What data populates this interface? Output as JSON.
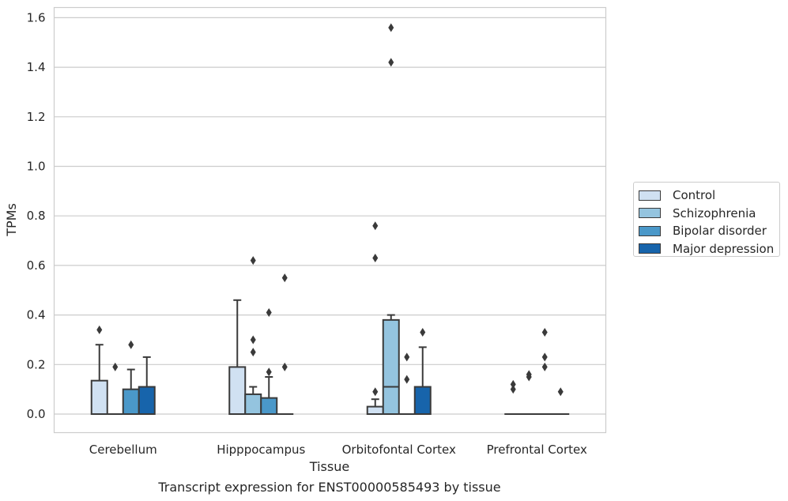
{
  "chart_data": {
    "type": "box",
    "title": "Transcript expression for ENST00000585493 by tissue",
    "xlabel": "Tissue",
    "ylabel": "TPMs",
    "ylim": [
      -0.08,
      1.64
    ],
    "yticks": [
      "0.0",
      "0.2",
      "0.4",
      "0.6",
      "0.8",
      "1.0",
      "1.2",
      "1.4",
      "1.6"
    ],
    "grid": "horizontal",
    "legend_position": "right",
    "categories": [
      "Cerebellum",
      "Hipppocampus",
      "Orbitofontal Cortex",
      "Prefrontal Cortex"
    ],
    "series": [
      {
        "name": "Control",
        "color": "#d0e1f2",
        "boxes": [
          {
            "q1": 0.0,
            "median": 0.0,
            "q3": 0.135,
            "whisker_low": 0.0,
            "whisker_high": 0.28,
            "outliers": [
              0.34
            ]
          },
          {
            "q1": 0.0,
            "median": 0.0,
            "q3": 0.19,
            "whisker_low": 0.0,
            "whisker_high": 0.46,
            "outliers": []
          },
          {
            "q1": 0.0,
            "median": 0.0,
            "q3": 0.03,
            "whisker_low": 0.0,
            "whisker_high": 0.06,
            "outliers": [
              0.09,
              0.63,
              0.76
            ]
          },
          {
            "q1": 0.0,
            "median": 0.0,
            "q3": 0.0,
            "whisker_low": 0.0,
            "whisker_high": 0.0,
            "outliers": [
              0.1,
              0.12
            ]
          }
        ]
      },
      {
        "name": "Schizophrenia",
        "color": "#94c4df",
        "boxes": [
          {
            "q1": 0.0,
            "median": 0.0,
            "q3": 0.0,
            "whisker_low": 0.0,
            "whisker_high": 0.0,
            "outliers": [
              0.19
            ]
          },
          {
            "q1": 0.0,
            "median": 0.0,
            "q3": 0.08,
            "whisker_low": 0.0,
            "whisker_high": 0.11,
            "outliers": [
              0.25,
              0.3,
              0.62
            ]
          },
          {
            "q1": 0.0,
            "median": 0.11,
            "q3": 0.38,
            "whisker_low": 0.0,
            "whisker_high": 0.4,
            "outliers": [
              1.42,
              1.56
            ]
          },
          {
            "q1": 0.0,
            "median": 0.0,
            "q3": 0.0,
            "whisker_low": 0.0,
            "whisker_high": 0.0,
            "outliers": [
              0.15,
              0.16
            ]
          }
        ]
      },
      {
        "name": "Bipolar disorder",
        "color": "#4a98c9",
        "boxes": [
          {
            "q1": 0.0,
            "median": 0.0,
            "q3": 0.1,
            "whisker_low": 0.0,
            "whisker_high": 0.18,
            "outliers": [
              0.28
            ]
          },
          {
            "q1": 0.0,
            "median": 0.0,
            "q3": 0.065,
            "whisker_low": 0.0,
            "whisker_high": 0.15,
            "outliers": [
              0.17,
              0.41
            ]
          },
          {
            "q1": 0.0,
            "median": 0.0,
            "q3": 0.0,
            "whisker_low": 0.0,
            "whisker_high": 0.0,
            "outliers": [
              0.14,
              0.23
            ]
          },
          {
            "q1": 0.0,
            "median": 0.0,
            "q3": 0.0,
            "whisker_low": 0.0,
            "whisker_high": 0.0,
            "outliers": [
              0.19,
              0.23,
              0.33
            ]
          }
        ]
      },
      {
        "name": "Major depression",
        "color": "#1764ab",
        "boxes": [
          {
            "q1": 0.0,
            "median": 0.0,
            "q3": 0.11,
            "whisker_low": 0.0,
            "whisker_high": 0.23,
            "outliers": []
          },
          {
            "q1": 0.0,
            "median": 0.0,
            "q3": 0.0,
            "whisker_low": 0.0,
            "whisker_high": 0.0,
            "outliers": [
              0.19,
              0.55
            ]
          },
          {
            "q1": 0.0,
            "median": 0.0,
            "q3": 0.11,
            "whisker_low": 0.0,
            "whisker_high": 0.27,
            "outliers": [
              0.33
            ]
          },
          {
            "q1": 0.0,
            "median": 0.0,
            "q3": 0.0,
            "whisker_low": 0.0,
            "whisker_high": 0.0,
            "outliers": [
              0.09
            ]
          }
        ]
      }
    ]
  }
}
